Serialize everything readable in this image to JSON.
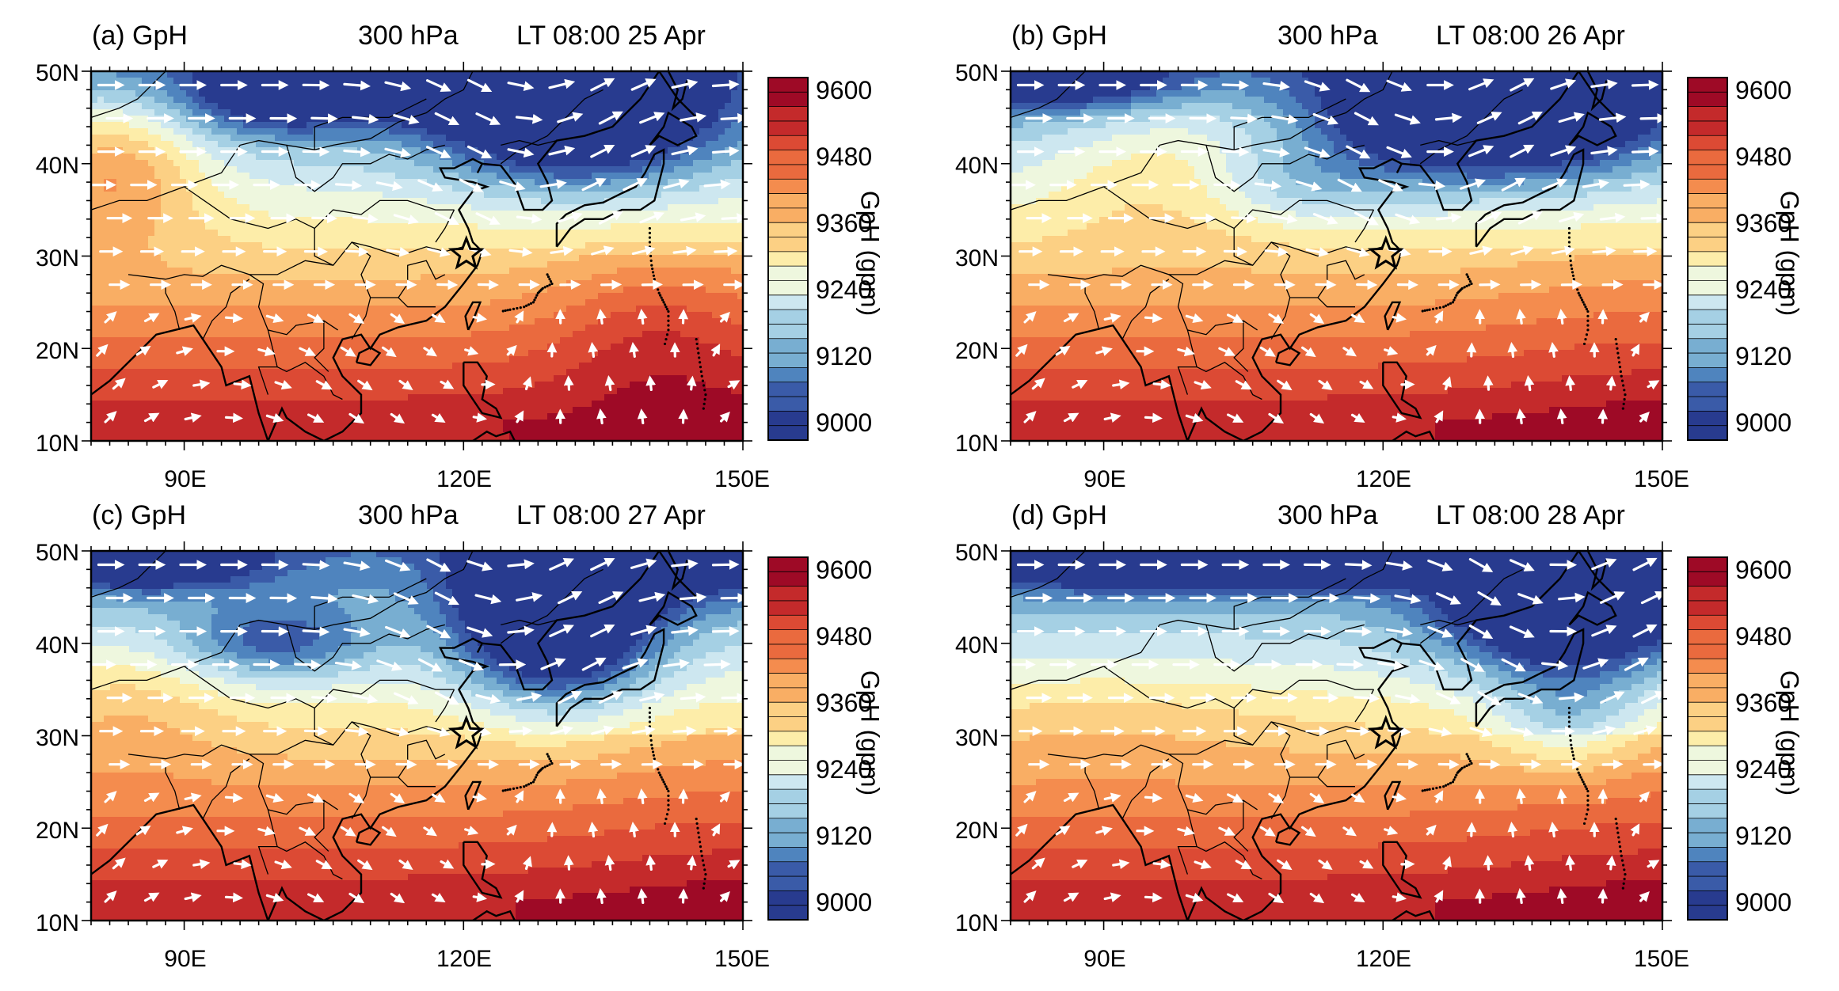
{
  "figure": {
    "variable": "GpH",
    "level": "300 hPa",
    "colorbar_title": "GpH (gpm)",
    "colorbar_ticks": [
      "9600",
      "9480",
      "9360",
      "9240",
      "9120",
      "9000"
    ],
    "lat_ticks": [
      "50N",
      "40N",
      "30N",
      "20N",
      "10N"
    ],
    "lon_ticks": [
      "90E",
      "120E",
      "150E"
    ],
    "palette": [
      "#9e0a26",
      "#c42a2b",
      "#dc4a34",
      "#ea6a3e",
      "#f48c4e",
      "#f9ae64",
      "#fcd084",
      "#fdeda9",
      "#eef7de",
      "#cde7f0",
      "#a5d0e4",
      "#78aed1",
      "#4f84be",
      "#3a5ba8",
      "#283b8f"
    ]
  },
  "panels": [
    {
      "label": "(a) GpH",
      "level": "300 hPa",
      "time": "LT 08:00 25 Apr"
    },
    {
      "label": "(b) GpH",
      "level": "300 hPa",
      "time": "LT 08:00 26 Apr"
    },
    {
      "label": "(c) GpH",
      "level": "300 hPa",
      "time": "LT 08:00 27 Apr"
    },
    {
      "label": "(d) GpH",
      "level": "300 hPa",
      "time": "LT 08:00 28 Apr"
    }
  ]
}
